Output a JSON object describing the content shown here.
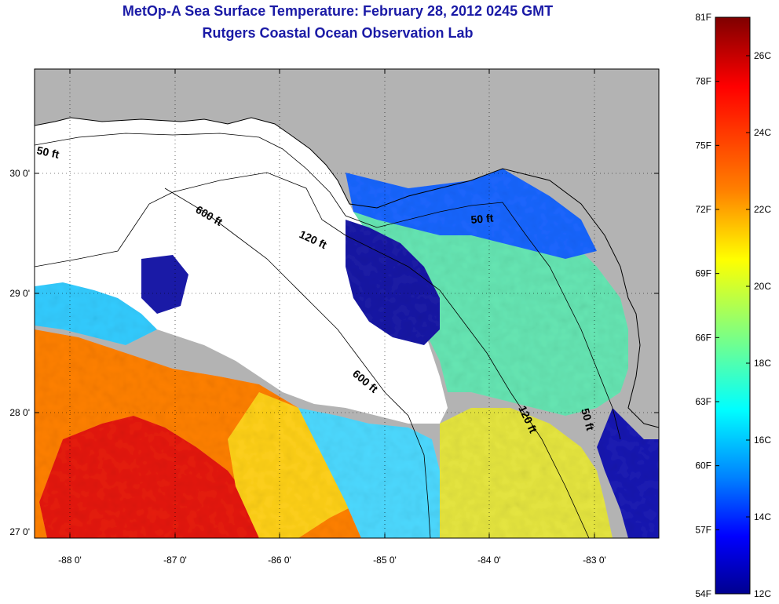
{
  "title_line1": "MetOp-A Sea Surface Temperature:  February 28, 2012 0245 GMT",
  "title_line2": "Rutgers Coastal Ocean Observation Lab",
  "lat_ticks": [
    {
      "value": 30,
      "label": "30 0'"
    },
    {
      "value": 29,
      "label": "29 0'"
    },
    {
      "value": 28,
      "label": "28 0'"
    },
    {
      "value": 27,
      "label": "27 0'"
    }
  ],
  "lon_ticks": [
    {
      "value": -88,
      "label": "-88 0'"
    },
    {
      "value": -87,
      "label": "-87 0'"
    },
    {
      "value": -86,
      "label": "-86 0'"
    },
    {
      "value": -85,
      "label": "-85 0'"
    },
    {
      "value": -84,
      "label": "-84 0'"
    },
    {
      "value": -83,
      "label": "-83 0'"
    }
  ],
  "contour_labels": [
    "50 ft",
    "600 ft",
    "120 ft",
    "50 ft",
    "600 ft",
    "120 ft",
    "50 ft"
  ],
  "colorbar": {
    "f_labels": [
      "81F",
      "78F",
      "75F",
      "72F",
      "69F",
      "66F",
      "63F",
      "60F",
      "57F",
      "54F"
    ],
    "c_labels": [
      "26C",
      "24C",
      "22C",
      "20C",
      "18C",
      "16C",
      "14C",
      "12C"
    ],
    "colors": [
      "#7f0000",
      "#ff0000",
      "#ff8000",
      "#ffff00",
      "#80ff80",
      "#00ffff",
      "#0080ff",
      "#0000ff",
      "#00008f"
    ]
  },
  "legend_colors": {
    "land": "#b3b3b3",
    "cloud": "#ffffff"
  }
}
